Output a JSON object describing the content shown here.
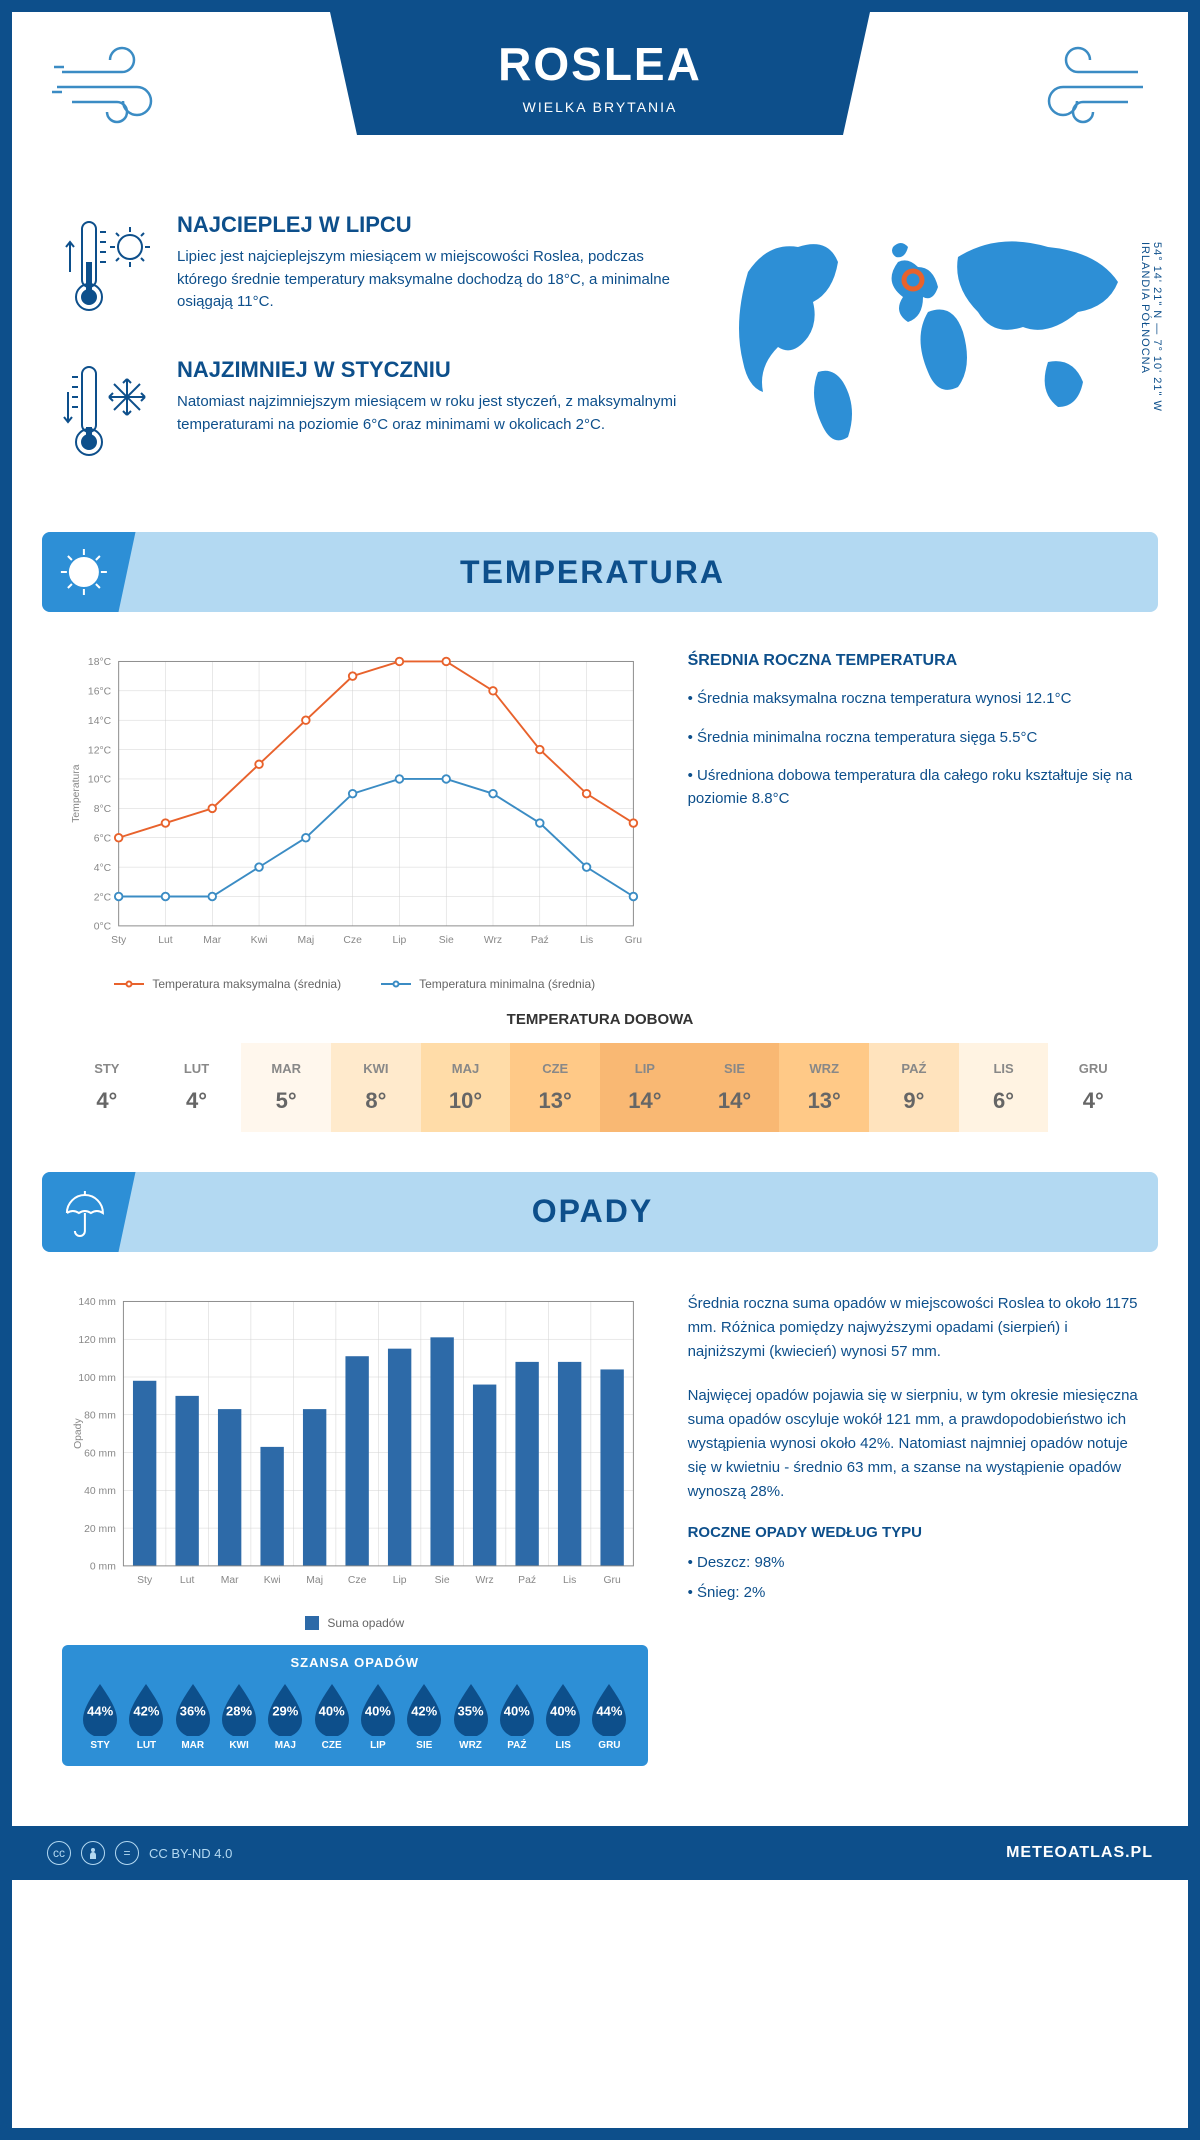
{
  "colors": {
    "primary": "#0d4f8b",
    "light_blue": "#b3d9f2",
    "med_blue": "#2d8fd6",
    "accent_blue": "#3b8cc4",
    "max_line": "#e8622c",
    "min_line": "#3b8cc4",
    "bar": "#2d6aa8",
    "grid": "#d0d0d0"
  },
  "header": {
    "title": "ROSLEA",
    "subtitle": "WIELKA BRYTANIA"
  },
  "coords": {
    "line1": "54° 14' 21\" N — 7° 10' 21\" W",
    "line2": "IRLANDIA PÓŁNOCNA"
  },
  "intro": {
    "hot": {
      "title": "NAJCIEPLEJ W LIPCU",
      "text": "Lipiec jest najcieplejszym miesiącem w miejscowości Roslea, podczas którego średnie temperatury maksymalne dochodzą do 18°C, a minimalne osiągają 11°C."
    },
    "cold": {
      "title": "NAJZIMNIEJ W STYCZNIU",
      "text": "Natomiast najzimniejszym miesiącem w roku jest styczeń, z maksymalnymi temperaturami na poziomie 6°C oraz minimami w okolicach 2°C."
    }
  },
  "temp_section": {
    "title": "TEMPERATURA",
    "side_title": "ŚREDNIA ROCZNA TEMPERATURA",
    "bullets": [
      "• Średnia maksymalna roczna temperatura wynosi 12.1°C",
      "• Średnia minimalna roczna temperatura sięga 5.5°C",
      "• Uśredniona dobowa temperatura dla całego roku kształtuje się na poziomie 8.8°C"
    ],
    "chart": {
      "type": "line",
      "months": [
        "Sty",
        "Lut",
        "Mar",
        "Kwi",
        "Maj",
        "Cze",
        "Lip",
        "Sie",
        "Wrz",
        "Paź",
        "Lis",
        "Gru"
      ],
      "y_label": "Temperatura",
      "ylim": [
        0,
        18
      ],
      "ytick_step": 2,
      "ytick_suffix": "°C",
      "series": [
        {
          "name": "Temperatura maksymalna (średnia)",
          "color": "#e8622c",
          "values": [
            6,
            7,
            8,
            11,
            14,
            17,
            18,
            18,
            16,
            12,
            9,
            7
          ]
        },
        {
          "name": "Temperatura minimalna (średnia)",
          "color": "#3b8cc4",
          "values": [
            2,
            2,
            2,
            4,
            6,
            9,
            10,
            10,
            9,
            7,
            4,
            2
          ]
        }
      ],
      "line_width": 2,
      "marker_size": 4,
      "grid_color": "#d0d0d0",
      "bg_color": "#ffffff"
    }
  },
  "daily": {
    "title": "TEMPERATURA DOBOWA",
    "months": [
      "STY",
      "LUT",
      "MAR",
      "KWI",
      "MAJ",
      "CZE",
      "LIP",
      "SIE",
      "WRZ",
      "PAŹ",
      "LIS",
      "GRU"
    ],
    "values": [
      4,
      4,
      5,
      8,
      10,
      13,
      14,
      14,
      13,
      9,
      6,
      4
    ],
    "bg_colors": [
      "#ffffff",
      "#ffffff",
      "#fff7ed",
      "#ffeacc",
      "#ffdca8",
      "#ffc987",
      "#f9b873",
      "#f9b873",
      "#ffc987",
      "#ffe3bd",
      "#fff3e2",
      "#ffffff"
    ]
  },
  "precip_section": {
    "title": "OPADY",
    "chart": {
      "type": "bar",
      "months": [
        "Sty",
        "Lut",
        "Mar",
        "Kwi",
        "Maj",
        "Cze",
        "Lip",
        "Sie",
        "Wrz",
        "Paź",
        "Lis",
        "Gru"
      ],
      "y_label": "Opady",
      "ylim": [
        0,
        140
      ],
      "ytick_step": 20,
      "ytick_suffix": " mm",
      "values": [
        98,
        90,
        83,
        63,
        83,
        111,
        115,
        121,
        96,
        108,
        108,
        104
      ],
      "bar_color": "#2d6aa8",
      "bar_width": 0.55,
      "grid_color": "#d0d0d0",
      "legend_label": "Suma opadów"
    },
    "para1": "Średnia roczna suma opadów w miejscowości Roslea to około 1175 mm. Różnica pomiędzy najwyższymi opadami (sierpień) i najniższymi (kwiecień) wynosi 57 mm.",
    "para2": "Najwięcej opadów pojawia się w sierpniu, w tym okresie miesięczna suma opadów oscyluje wokół 121 mm, a prawdopodobieństwo ich wystąpienia wynosi około 42%. Natomiast najmniej opadów notuje się w kwietniu - średnio 63 mm, a szanse na wystąpienie opadów wynoszą 28%.",
    "type_title": "ROCZNE OPADY WEDŁUG TYPU",
    "type_lines": [
      "• Deszcz: 98%",
      "• Śnieg: 2%"
    ]
  },
  "chance": {
    "title": "SZANSA OPADÓW",
    "months": [
      "STY",
      "LUT",
      "MAR",
      "KWI",
      "MAJ",
      "CZE",
      "LIP",
      "SIE",
      "WRZ",
      "PAŹ",
      "LIS",
      "GRU"
    ],
    "values": [
      44,
      42,
      36,
      28,
      29,
      40,
      40,
      42,
      35,
      40,
      40,
      44
    ],
    "drop_color": "#0d4f8b"
  },
  "footer": {
    "license": "CC BY-ND 4.0",
    "site": "METEOATLAS.PL"
  }
}
